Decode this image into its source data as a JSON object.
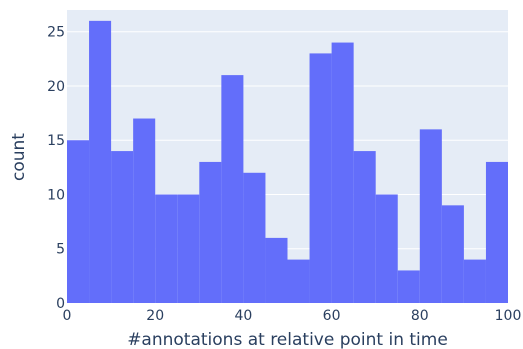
{
  "chart_data": {
    "type": "bar",
    "subtype": "histogram",
    "xlabel": "#annotations at relative point in time",
    "ylabel": "count",
    "xlim": [
      0,
      100
    ],
    "ylim": [
      0,
      27
    ],
    "xticks": [
      0,
      20,
      40,
      60,
      80,
      100
    ],
    "yticks": [
      0,
      5,
      10,
      15,
      20,
      25
    ],
    "bin_width": 5,
    "bins": [
      {
        "x0": 0,
        "x1": 5,
        "count": 15
      },
      {
        "x0": 5,
        "x1": 10,
        "count": 26
      },
      {
        "x0": 10,
        "x1": 15,
        "count": 14
      },
      {
        "x0": 15,
        "x1": 20,
        "count": 17
      },
      {
        "x0": 20,
        "x1": 25,
        "count": 10
      },
      {
        "x0": 25,
        "x1": 30,
        "count": 10
      },
      {
        "x0": 30,
        "x1": 35,
        "count": 13
      },
      {
        "x0": 35,
        "x1": 40,
        "count": 21
      },
      {
        "x0": 40,
        "x1": 45,
        "count": 12
      },
      {
        "x0": 45,
        "x1": 50,
        "count": 6
      },
      {
        "x0": 50,
        "x1": 55,
        "count": 4
      },
      {
        "x0": 55,
        "x1": 60,
        "count": 23
      },
      {
        "x0": 60,
        "x1": 65,
        "count": 24
      },
      {
        "x0": 65,
        "x1": 70,
        "count": 14
      },
      {
        "x0": 70,
        "x1": 75,
        "count": 10
      },
      {
        "x0": 75,
        "x1": 80,
        "count": 3
      },
      {
        "x0": 80,
        "x1": 85,
        "count": 16
      },
      {
        "x0": 85,
        "x1": 90,
        "count": 9
      },
      {
        "x0": 90,
        "x1": 95,
        "count": 4
      },
      {
        "x0": 95,
        "x1": 100,
        "count": 13
      }
    ],
    "grid": true,
    "colors": {
      "bar": "#636efa",
      "plot_background": "#e5ecf6",
      "gridline": "#ffffff",
      "text": "#2a3f5f"
    }
  }
}
